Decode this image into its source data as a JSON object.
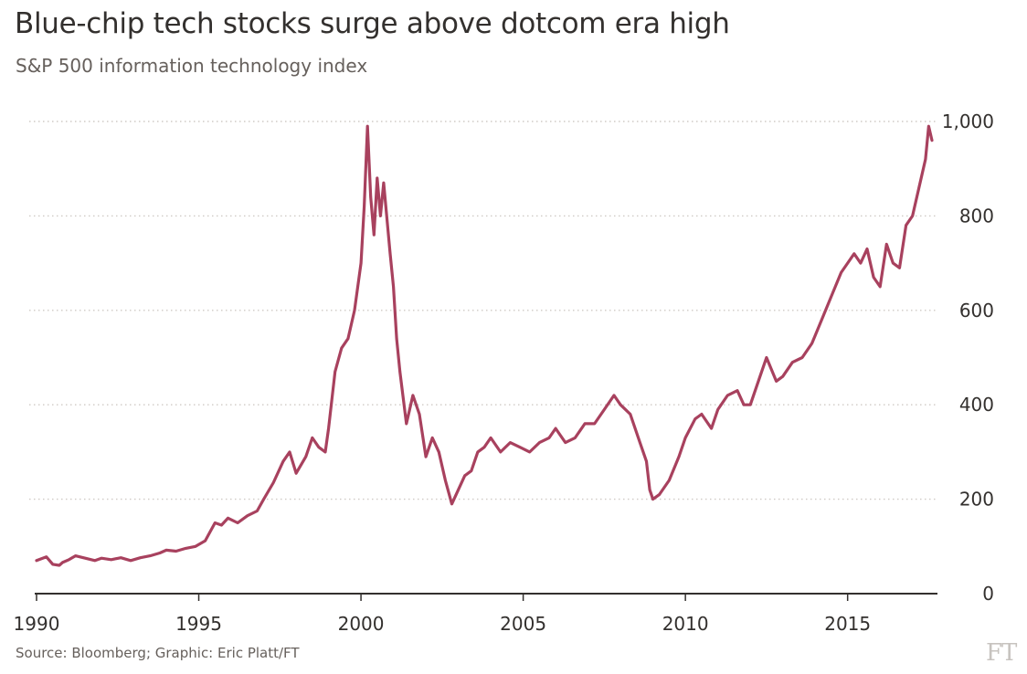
{
  "title": "Blue-chip tech stocks surge above dotcom era high",
  "subtitle": "S&P 500 information technology index",
  "source": "Source: Bloomberg; Graphic: Eric Platt/FT",
  "brand": "FT",
  "colors": {
    "series": "#a8415e",
    "grid": "#cfcac5",
    "axis": "#33302e",
    "text": "#33302e",
    "muted": "#66605c"
  },
  "chart_data": {
    "type": "line",
    "title": "Blue-chip tech stocks surge above dotcom era high",
    "subtitle": "S&P 500 information technology index",
    "xlabel": "",
    "ylabel": "",
    "xlim": [
      1990,
      2017.6
    ],
    "ylim": [
      0,
      1000
    ],
    "x_ticks": [
      {
        "value": 1990,
        "label": "1990"
      },
      {
        "value": 1995,
        "label": "1995"
      },
      {
        "value": 2000,
        "label": "2000"
      },
      {
        "value": 2005,
        "label": "2005"
      },
      {
        "value": 2010,
        "label": "2010"
      },
      {
        "value": 2015,
        "label": "2015"
      }
    ],
    "y_ticks": [
      {
        "value": 0,
        "label": "0"
      },
      {
        "value": 200,
        "label": "200"
      },
      {
        "value": 400,
        "label": "400"
      },
      {
        "value": 600,
        "label": "600"
      },
      {
        "value": 800,
        "label": "800"
      },
      {
        "value": 1000,
        "label": "1,000"
      }
    ],
    "grid": true,
    "y_axis_position": "right",
    "series": [
      {
        "x": [
          1990.0,
          1990.3,
          1990.5,
          1990.7,
          1990.8,
          1991.0,
          1991.2,
          1991.5,
          1991.8,
          1992.0,
          1992.3,
          1992.6,
          1992.9,
          1993.2,
          1993.5,
          1993.8,
          1994.0,
          1994.3,
          1994.6,
          1994.9,
          1995.2,
          1995.5,
          1995.7,
          1995.9,
          1996.2,
          1996.5,
          1996.8,
          1997.0,
          1997.3,
          1997.6,
          1997.8,
          1998.0,
          1998.3,
          1998.5,
          1998.7,
          1998.9,
          1999.0,
          1999.2,
          1999.4,
          1999.6,
          1999.8,
          2000.0,
          2000.1,
          2000.2,
          2000.3,
          2000.4,
          2000.5,
          2000.6,
          2000.7,
          2000.9,
          2001.0,
          2001.1,
          2001.2,
          2001.4,
          2001.6,
          2001.8,
          2002.0,
          2002.2,
          2002.4,
          2002.6,
          2002.8,
          2003.0,
          2003.2,
          2003.4,
          2003.6,
          2003.8,
          2004.0,
          2004.3,
          2004.6,
          2004.9,
          2005.2,
          2005.5,
          2005.8,
          2006.0,
          2006.3,
          2006.6,
          2006.9,
          2007.2,
          2007.5,
          2007.8,
          2008.0,
          2008.3,
          2008.6,
          2008.8,
          2008.9,
          2009.0,
          2009.2,
          2009.5,
          2009.8,
          2010.0,
          2010.3,
          2010.5,
          2010.8,
          2011.0,
          2011.3,
          2011.6,
          2011.8,
          2012.0,
          2012.3,
          2012.5,
          2012.8,
          2013.0,
          2013.3,
          2013.6,
          2013.9,
          2014.2,
          2014.5,
          2014.8,
          2015.0,
          2015.2,
          2015.4,
          2015.6,
          2015.8,
          2016.0,
          2016.2,
          2016.4,
          2016.6,
          2016.8,
          2017.0,
          2017.2,
          2017.4,
          2017.5,
          2017.6
        ],
        "y": [
          70,
          78,
          62,
          60,
          66,
          72,
          80,
          75,
          70,
          75,
          72,
          76,
          70,
          76,
          80,
          86,
          92,
          90,
          96,
          100,
          112,
          150,
          145,
          160,
          150,
          165,
          175,
          200,
          235,
          280,
          300,
          255,
          290,
          330,
          310,
          300,
          350,
          470,
          520,
          540,
          600,
          700,
          820,
          990,
          840,
          760,
          880,
          800,
          870,
          720,
          650,
          540,
          470,
          360,
          420,
          380,
          290,
          330,
          300,
          240,
          190,
          220,
          250,
          260,
          300,
          310,
          330,
          300,
          320,
          310,
          300,
          320,
          330,
          350,
          320,
          330,
          360,
          360,
          390,
          420,
          400,
          380,
          320,
          280,
          220,
          200,
          210,
          240,
          290,
          330,
          370,
          380,
          350,
          390,
          420,
          430,
          400,
          400,
          460,
          500,
          450,
          460,
          490,
          500,
          530,
          580,
          630,
          680,
          700,
          720,
          700,
          730,
          670,
          650,
          740,
          700,
          690,
          780,
          800,
          860,
          920,
          990,
          960
        ]
      }
    ]
  }
}
